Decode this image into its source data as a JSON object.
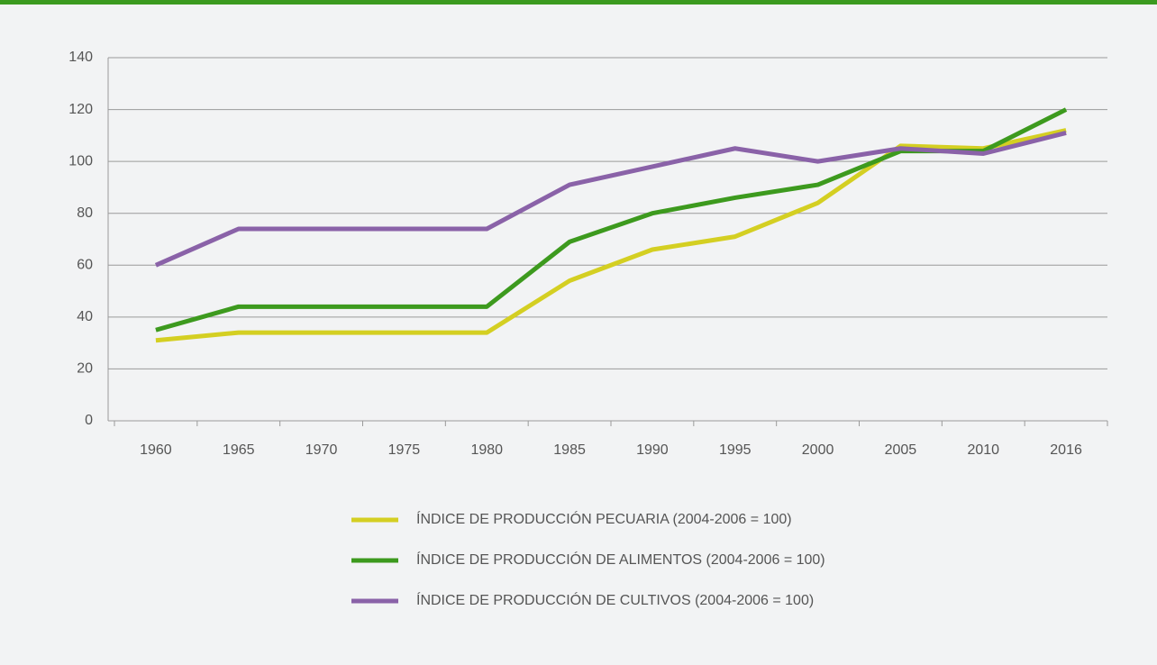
{
  "chart_data": {
    "type": "line",
    "categories": [
      "1960",
      "1965",
      "1970",
      "1975",
      "1980",
      "1985",
      "1990",
      "1995",
      "2000",
      "2005",
      "2010",
      "2016"
    ],
    "series": [
      {
        "name": "ÍNDICE DE PRODUCCIÓN PECUARIA (2004-2006 = 100)",
        "color": "#d4cf22",
        "values": [
          31,
          34,
          34,
          34,
          34,
          54,
          66,
          71,
          84,
          106,
          105,
          112
        ]
      },
      {
        "name": "ÍNDICE DE PRODUCCIÓN DE ALIMENTOS (2004-2006 = 100)",
        "color": "#3d9a1e",
        "values": [
          35,
          44,
          44,
          44,
          44,
          69,
          80,
          86,
          91,
          104,
          104,
          120
        ]
      },
      {
        "name": "ÍNDICE DE PRODUCCIÓN DE CULTIVOS (2004-2006 = 100)",
        "color": "#8a62a8",
        "values": [
          60,
          74,
          74,
          74,
          74,
          91,
          98,
          105,
          100,
          105,
          103,
          111
        ]
      }
    ],
    "ylim": [
      0,
      140
    ],
    "yticks": [
      0,
      20,
      40,
      60,
      80,
      100,
      120,
      140
    ],
    "grid": true
  }
}
